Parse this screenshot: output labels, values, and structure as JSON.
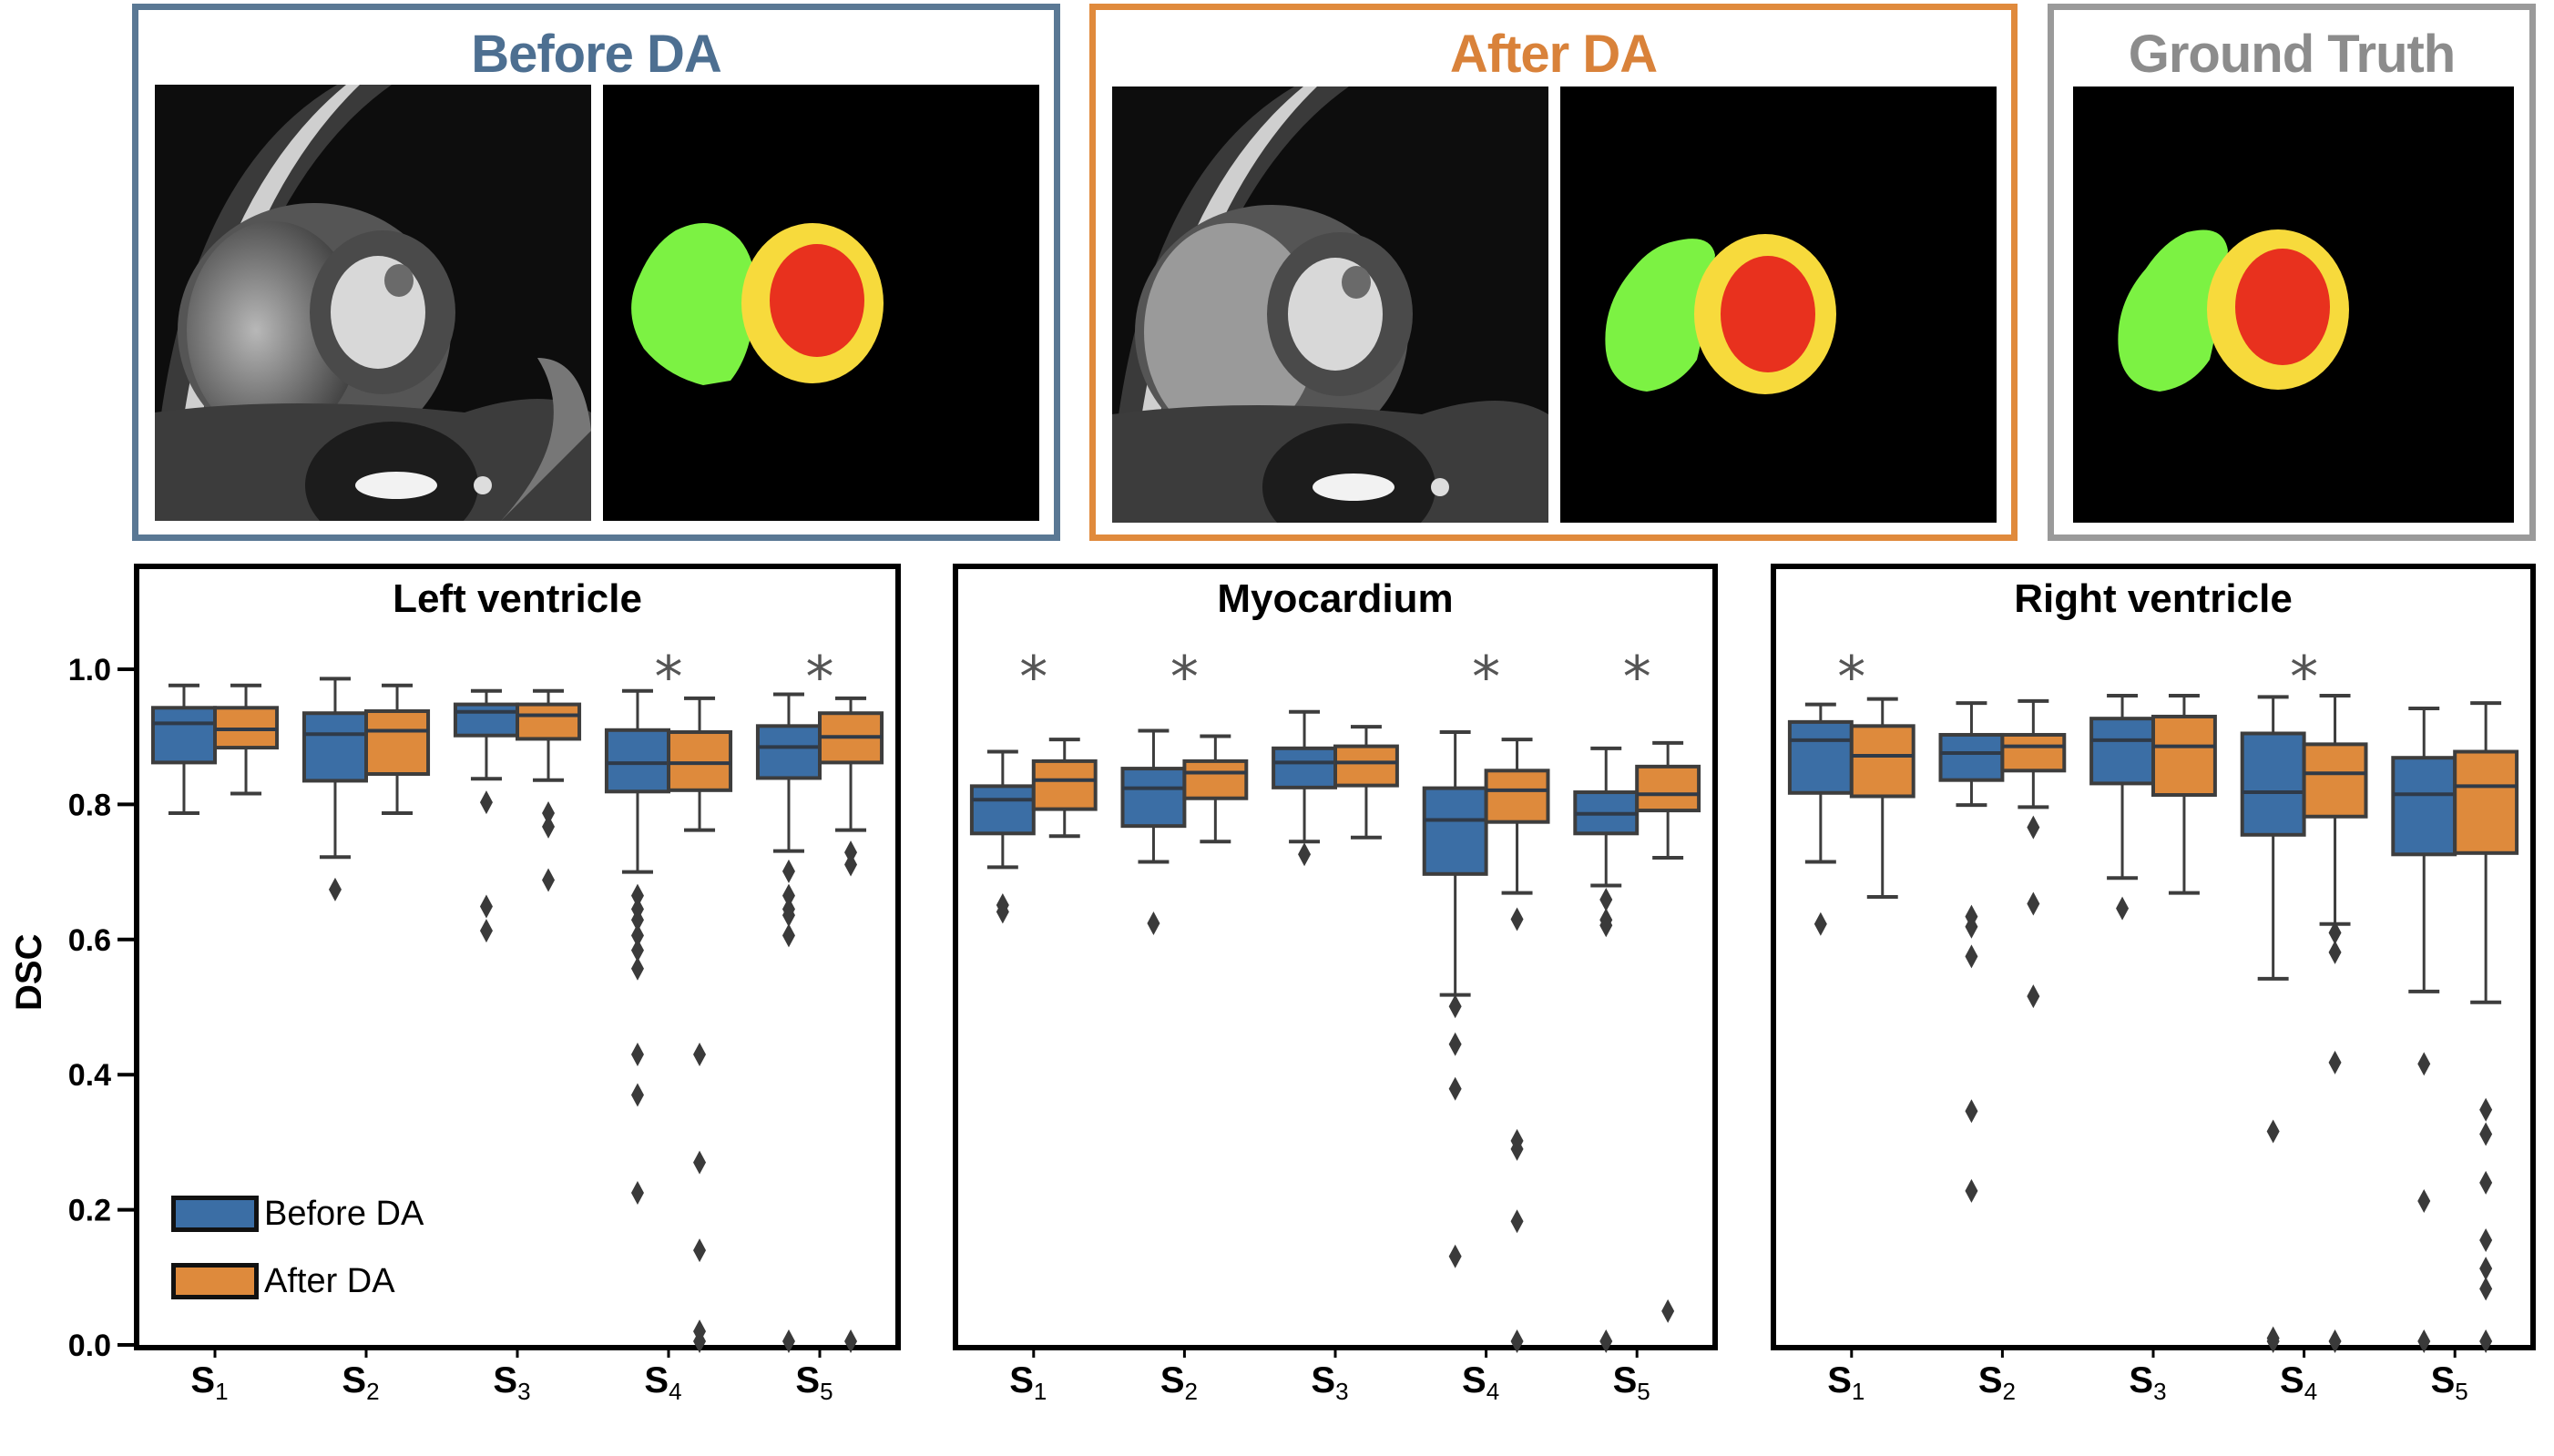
{
  "colors": {
    "before": "#3b6ea5",
    "after": "#de8a3c",
    "before_frame": "#5a7894",
    "after_frame": "#e08a3c",
    "gt_frame": "#9a9a9a",
    "gt_title": "#8c8c8c",
    "outlier": "#3a3a3a",
    "seg_rv": "#7cf243",
    "seg_myo": "#f7da3c",
    "seg_lv": "#e8311e"
  },
  "top_row": [
    {
      "title": "Before DA",
      "kind": "before",
      "images": [
        "mri",
        "seg-before"
      ]
    },
    {
      "title": "After DA",
      "kind": "after",
      "images": [
        "mri",
        "seg-after"
      ]
    },
    {
      "title": "Ground Truth",
      "kind": "gt",
      "images": [
        "seg-gt"
      ]
    }
  ],
  "chart_data": {
    "type": "box",
    "ylabel": "DSC",
    "ylim": [
      0.0,
      1.13
    ],
    "yticks": [
      0.0,
      0.2,
      0.4,
      0.6,
      0.8,
      1.0
    ],
    "ytick_labels": [
      "0.0",
      "0.2",
      "0.4",
      "0.6",
      "0.8",
      "1.0"
    ],
    "categories": [
      {
        "base": "S",
        "sub": "1"
      },
      {
        "base": "S",
        "sub": "2"
      },
      {
        "base": "S",
        "sub": "3"
      },
      {
        "base": "S",
        "sub": "4"
      },
      {
        "base": "S",
        "sub": "5"
      }
    ],
    "legend": {
      "position": "bottom-left",
      "entries": [
        "Before DA",
        "After DA"
      ]
    },
    "significance_marker": "*",
    "panels": [
      {
        "title": "Left ventricle",
        "significant": [
          false,
          false,
          false,
          true,
          true
        ],
        "series": [
          {
            "name": "Before DA",
            "boxes": [
              {
                "whislo": 0.787,
                "q1": 0.862,
                "med": 0.92,
                "q3": 0.943,
                "whishi": 0.976,
                "fliers": []
              },
              {
                "whislo": 0.722,
                "q1": 0.835,
                "med": 0.904,
                "q3": 0.935,
                "whishi": 0.986,
                "fliers": [
                  0.674
                ]
              },
              {
                "whislo": 0.838,
                "q1": 0.902,
                "med": 0.937,
                "q3": 0.948,
                "whishi": 0.968,
                "fliers": [
                  0.803,
                  0.649,
                  0.613
                ]
              },
              {
                "whislo": 0.7,
                "q1": 0.819,
                "med": 0.861,
                "q3": 0.91,
                "whishi": 0.968,
                "fliers": [
                  0.665,
                  0.645,
                  0.629,
                  0.606,
                  0.584,
                  0.557,
                  0.43,
                  0.37,
                  0.225
                ]
              },
              {
                "whislo": 0.731,
                "q1": 0.839,
                "med": 0.885,
                "q3": 0.916,
                "whishi": 0.963,
                "fliers": [
                  0.701,
                  0.665,
                  0.645,
                  0.636,
                  0.606,
                  0.0
                ]
              }
            ]
          },
          {
            "name": "After DA",
            "boxes": [
              {
                "whislo": 0.816,
                "q1": 0.884,
                "med": 0.911,
                "q3": 0.943,
                "whishi": 0.976,
                "fliers": []
              },
              {
                "whislo": 0.787,
                "q1": 0.845,
                "med": 0.909,
                "q3": 0.938,
                "whishi": 0.976,
                "fliers": []
              },
              {
                "whislo": 0.836,
                "q1": 0.897,
                "med": 0.932,
                "q3": 0.948,
                "whishi": 0.968,
                "fliers": [
                  0.787,
                  0.767,
                  0.688
                ]
              },
              {
                "whislo": 0.762,
                "q1": 0.821,
                "med": 0.861,
                "q3": 0.907,
                "whishi": 0.957,
                "fliers": [
                  0.43,
                  0.27,
                  0.14,
                  0.02,
                  0.0
                ]
              },
              {
                "whislo": 0.762,
                "q1": 0.862,
                "med": 0.9,
                "q3": 0.935,
                "whishi": 0.957,
                "fliers": [
                  0.729,
                  0.711,
                  0.0
                ]
              }
            ]
          }
        ]
      },
      {
        "title": "Myocardium",
        "significant": [
          true,
          true,
          false,
          true,
          true
        ],
        "series": [
          {
            "name": "Before DA",
            "boxes": [
              {
                "whislo": 0.707,
                "q1": 0.757,
                "med": 0.807,
                "q3": 0.827,
                "whishi": 0.878,
                "fliers": [
                  0.651,
                  0.641
                ]
              },
              {
                "whislo": 0.715,
                "q1": 0.768,
                "med": 0.824,
                "q3": 0.853,
                "whishi": 0.909,
                "fliers": [
                  0.624
                ]
              },
              {
                "whislo": 0.745,
                "q1": 0.825,
                "med": 0.862,
                "q3": 0.883,
                "whishi": 0.937,
                "fliers": [
                  0.726
                ]
              },
              {
                "whislo": 0.518,
                "q1": 0.697,
                "med": 0.777,
                "q3": 0.824,
                "whishi": 0.907,
                "fliers": [
                  0.501,
                  0.445,
                  0.379,
                  0.131
                ]
              },
              {
                "whislo": 0.68,
                "q1": 0.757,
                "med": 0.786,
                "q3": 0.818,
                "whishi": 0.883,
                "fliers": [
                  0.659,
                  0.629,
                  0.621,
                  0.0
                ]
              }
            ]
          },
          {
            "name": "After DA",
            "boxes": [
              {
                "whislo": 0.753,
                "q1": 0.793,
                "med": 0.836,
                "q3": 0.864,
                "whishi": 0.896,
                "fliers": []
              },
              {
                "whislo": 0.745,
                "q1": 0.809,
                "med": 0.847,
                "q3": 0.864,
                "whishi": 0.901,
                "fliers": []
              },
              {
                "whislo": 0.751,
                "q1": 0.828,
                "med": 0.862,
                "q3": 0.886,
                "whishi": 0.915,
                "fliers": []
              },
              {
                "whislo": 0.669,
                "q1": 0.774,
                "med": 0.821,
                "q3": 0.85,
                "whishi": 0.896,
                "fliers": [
                  0.63,
                  0.302,
                  0.29,
                  0.183,
                  0.0
                ]
              },
              {
                "whislo": 0.721,
                "q1": 0.791,
                "med": 0.815,
                "q3": 0.856,
                "whishi": 0.891,
                "fliers": [
                  0.05
                ]
              }
            ]
          }
        ]
      },
      {
        "title": "Right ventricle",
        "significant": [
          true,
          false,
          false,
          true,
          false
        ],
        "series": [
          {
            "name": "Before DA",
            "boxes": [
              {
                "whislo": 0.715,
                "q1": 0.817,
                "med": 0.895,
                "q3": 0.922,
                "whishi": 0.948,
                "fliers": [
                  0.623
                ]
              },
              {
                "whislo": 0.799,
                "q1": 0.836,
                "med": 0.876,
                "q3": 0.903,
                "whishi": 0.95,
                "fliers": [
                  0.634,
                  0.619,
                  0.575,
                  0.346,
                  0.228
                ]
              },
              {
                "whislo": 0.691,
                "q1": 0.831,
                "med": 0.895,
                "q3": 0.927,
                "whishi": 0.961,
                "fliers": [
                  0.646
                ]
              },
              {
                "whislo": 0.542,
                "q1": 0.755,
                "med": 0.818,
                "q3": 0.905,
                "whishi": 0.959,
                "fliers": [
                  0.316,
                  0.01,
                  0.0
                ]
              },
              {
                "whislo": 0.523,
                "q1": 0.726,
                "med": 0.815,
                "q3": 0.869,
                "whishi": 0.942,
                "fliers": [
                  0.416,
                  0.213,
                  0.0
                ]
              }
            ]
          },
          {
            "name": "After DA",
            "boxes": [
              {
                "whislo": 0.663,
                "q1": 0.812,
                "med": 0.872,
                "q3": 0.916,
                "whishi": 0.956,
                "fliers": []
              },
              {
                "whislo": 0.796,
                "q1": 0.85,
                "med": 0.886,
                "q3": 0.903,
                "whishi": 0.953,
                "fliers": [
                  0.766,
                  0.653,
                  0.516
                ]
              },
              {
                "whislo": 0.669,
                "q1": 0.814,
                "med": 0.886,
                "q3": 0.93,
                "whishi": 0.961,
                "fliers": []
              },
              {
                "whislo": 0.623,
                "q1": 0.782,
                "med": 0.846,
                "q3": 0.889,
                "whishi": 0.961,
                "fliers": [
                  0.61,
                  0.581,
                  0.418,
                  0.0
                ]
              },
              {
                "whislo": 0.507,
                "q1": 0.728,
                "med": 0.827,
                "q3": 0.878,
                "whishi": 0.95,
                "fliers": [
                  0.348,
                  0.312,
                  0.24,
                  0.155,
                  0.113,
                  0.083,
                  0.0
                ]
              }
            ]
          }
        ]
      }
    ]
  }
}
